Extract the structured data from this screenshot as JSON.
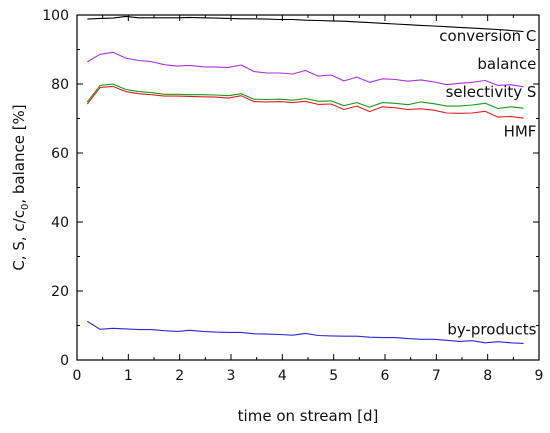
{
  "chart_data": {
    "type": "line",
    "xlabel": "time on stream [d]",
    "ylabel": "C, S, c/c0, balance [%]",
    "ylabel_parts": {
      "pre": "C, S, c/c",
      "sub": "0",
      "post": ", balance [%]"
    },
    "xlim": [
      0,
      9
    ],
    "ylim": [
      0,
      100
    ],
    "x_ticks": [
      0,
      1,
      2,
      3,
      4,
      5,
      6,
      7,
      8,
      9
    ],
    "y_ticks": [
      0,
      20,
      40,
      60,
      80,
      100
    ],
    "grid": false,
    "legend": "inline labels",
    "series": [
      {
        "name": "conversion C",
        "color": "#000000",
        "x": [
          0.2,
          0.45,
          0.7,
          0.95,
          1.2,
          1.45,
          1.7,
          1.95,
          2.2,
          2.45,
          2.7,
          2.95,
          3.2,
          3.45,
          3.7,
          3.95,
          4.2,
          4.45,
          4.7,
          4.95,
          5.2,
          5.45,
          5.7,
          5.95,
          6.2,
          6.45,
          6.7,
          6.95,
          7.2,
          7.45,
          7.7,
          7.95,
          8.2,
          8.45,
          8.7
        ],
        "values": [
          98.8,
          99.0,
          99.1,
          99.6,
          99.2,
          99.2,
          99.2,
          99.2,
          99.3,
          99.2,
          99.1,
          99.0,
          98.9,
          98.9,
          98.8,
          98.7,
          98.7,
          98.5,
          98.4,
          98.3,
          98.2,
          98.0,
          97.8,
          97.6,
          97.4,
          97.2,
          97.0,
          96.8,
          96.6,
          96.4,
          96.2,
          96.0,
          95.8,
          95.5,
          95.2
        ]
      },
      {
        "name": "balance",
        "color": "#b030e0",
        "x": [
          0.2,
          0.45,
          0.7,
          0.95,
          1.2,
          1.45,
          1.7,
          1.95,
          2.2,
          2.45,
          2.7,
          2.95,
          3.2,
          3.45,
          3.7,
          3.95,
          4.2,
          4.45,
          4.7,
          4.95,
          5.2,
          5.45,
          5.7,
          5.95,
          6.2,
          6.45,
          6.7,
          6.95,
          7.2,
          7.45,
          7.7,
          7.95,
          8.2,
          8.45,
          8.7
        ],
        "values": [
          86.4,
          88.6,
          89.2,
          87.5,
          86.8,
          86.5,
          85.6,
          85.2,
          85.4,
          85.0,
          84.9,
          84.8,
          85.5,
          83.6,
          83.2,
          83.2,
          82.9,
          83.9,
          82.3,
          82.6,
          80.9,
          82.0,
          80.5,
          81.5,
          81.3,
          80.8,
          81.2,
          80.6,
          79.8,
          80.2,
          80.5,
          81.0,
          79.6,
          79.8,
          79.2
        ]
      },
      {
        "name": "selectivity S",
        "color": "#1a9a1a",
        "x": [
          0.2,
          0.45,
          0.7,
          0.95,
          1.2,
          1.45,
          1.7,
          1.95,
          2.2,
          2.45,
          2.7,
          2.95,
          3.2,
          3.45,
          3.7,
          3.95,
          4.2,
          4.45,
          4.7,
          4.95,
          5.2,
          5.45,
          5.7,
          5.95,
          6.2,
          6.45,
          6.7,
          6.95,
          7.2,
          7.45,
          7.7,
          7.95,
          8.2,
          8.45,
          8.7
        ],
        "values": [
          74.8,
          79.6,
          80.0,
          78.4,
          77.8,
          77.5,
          77.0,
          77.0,
          76.9,
          76.9,
          76.8,
          76.6,
          77.2,
          75.6,
          75.5,
          75.6,
          75.3,
          75.8,
          75.0,
          75.1,
          73.7,
          74.6,
          73.3,
          74.6,
          74.4,
          74.0,
          74.8,
          74.3,
          73.6,
          73.6,
          73.9,
          74.4,
          72.9,
          73.4,
          73.0
        ]
      },
      {
        "name": "HMF",
        "color": "#e02020",
        "x": [
          0.2,
          0.45,
          0.7,
          0.95,
          1.2,
          1.45,
          1.7,
          1.95,
          2.2,
          2.45,
          2.7,
          2.95,
          3.2,
          3.45,
          3.7,
          3.95,
          4.2,
          4.45,
          4.7,
          4.95,
          5.2,
          5.45,
          5.7,
          5.95,
          6.2,
          6.45,
          6.7,
          6.95,
          7.2,
          7.45,
          7.7,
          7.95,
          8.2,
          8.45,
          8.7
        ],
        "values": [
          74.2,
          79.0,
          79.3,
          77.8,
          77.2,
          76.9,
          76.5,
          76.5,
          76.4,
          76.3,
          76.2,
          75.9,
          76.6,
          74.9,
          74.8,
          74.9,
          74.6,
          75.0,
          74.1,
          74.2,
          72.6,
          73.6,
          72.0,
          73.4,
          73.1,
          72.6,
          72.8,
          72.4,
          71.6,
          71.5,
          71.6,
          72.1,
          70.4,
          70.6,
          70.1
        ]
      },
      {
        "name": "by-products",
        "color": "#2a2ad8",
        "x": [
          0.2,
          0.45,
          0.7,
          0.95,
          1.2,
          1.45,
          1.7,
          1.95,
          2.2,
          2.45,
          2.7,
          2.95,
          3.2,
          3.45,
          3.7,
          3.95,
          4.2,
          4.45,
          4.7,
          4.95,
          5.2,
          5.45,
          5.7,
          5.95,
          6.2,
          6.45,
          6.7,
          6.95,
          7.2,
          7.45,
          7.7,
          7.95,
          8.2,
          8.45,
          8.7
        ],
        "values": [
          11.2,
          8.9,
          9.2,
          9.0,
          8.8,
          8.8,
          8.5,
          8.3,
          8.6,
          8.3,
          8.1,
          8.0,
          8.0,
          7.6,
          7.5,
          7.4,
          7.2,
          7.7,
          7.1,
          7.0,
          6.9,
          6.9,
          6.6,
          6.5,
          6.5,
          6.2,
          6.0,
          6.0,
          5.7,
          5.4,
          5.6,
          5.0,
          5.3,
          5.0,
          4.8
        ]
      }
    ],
    "labels": [
      {
        "series": 0,
        "text": "conversion C",
        "x": 8.95,
        "y": 92.4
      },
      {
        "series": 1,
        "text": "balance",
        "x": 8.95,
        "y": 84.4
      },
      {
        "series": 2,
        "text": "selectivity S",
        "x": 8.95,
        "y": 76.2
      },
      {
        "series": 3,
        "text": "HMF",
        "x": 8.95,
        "y": 64.8
      },
      {
        "series": 4,
        "text": "by-products",
        "x": 8.95,
        "y": 7.4
      }
    ]
  }
}
